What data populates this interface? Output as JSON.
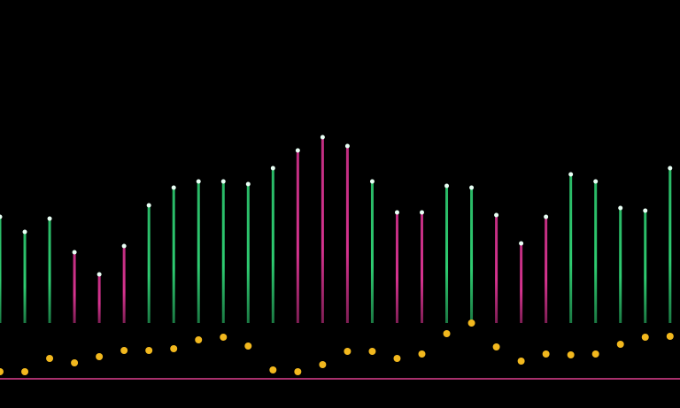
{
  "chart_data": {
    "type": "stem",
    "x": [
      0,
      1,
      2,
      3,
      4,
      5,
      6,
      7,
      8,
      9,
      10,
      11,
      12,
      13,
      14,
      15,
      16,
      17,
      18,
      19,
      20,
      21,
      22,
      23,
      24,
      25,
      26,
      27
    ],
    "xlim": [
      0,
      27.4
    ],
    "ylim": [
      0,
      300
    ],
    "top": [
      195,
      178,
      193,
      155,
      130,
      162,
      208,
      228,
      235,
      235,
      232,
      250,
      270,
      285,
      275,
      235,
      200,
      200,
      230,
      228,
      197,
      165,
      195,
      243,
      235,
      205,
      202,
      250
    ],
    "bottom": [
      75,
      75,
      75,
      75,
      75,
      75,
      75,
      75,
      75,
      75,
      75,
      75,
      75,
      75,
      75,
      75,
      75,
      75,
      75,
      75,
      75,
      75,
      75,
      75,
      75,
      75,
      75,
      75
    ],
    "colors": [
      "#2ecc71",
      "#2ecc71",
      "#2ecc71",
      "#d6338f",
      "#d6338f",
      "#d6338f",
      "#2ecc71",
      "#2ecc71",
      "#2ecc71",
      "#2ecc71",
      "#2ecc71",
      "#2ecc71",
      "#d6338f",
      "#d6338f",
      "#d6338f",
      "#2ecc71",
      "#d6338f",
      "#d6338f",
      "#2ecc71",
      "#2ecc71",
      "#d6338f",
      "#d6338f",
      "#d6338f",
      "#2ecc71",
      "#2ecc71",
      "#2ecc71",
      "#2ecc71",
      "#2ecc71"
    ],
    "dots": [
      20,
      20,
      35,
      30,
      37,
      44,
      44,
      46,
      56,
      59,
      49,
      22,
      20,
      28,
      43,
      43,
      35,
      40,
      63,
      75,
      48,
      32,
      40,
      39,
      40,
      51,
      59,
      60
    ],
    "dot_color": "#f2b81e",
    "baseline": 12,
    "baseline_color": "#e0408f"
  }
}
